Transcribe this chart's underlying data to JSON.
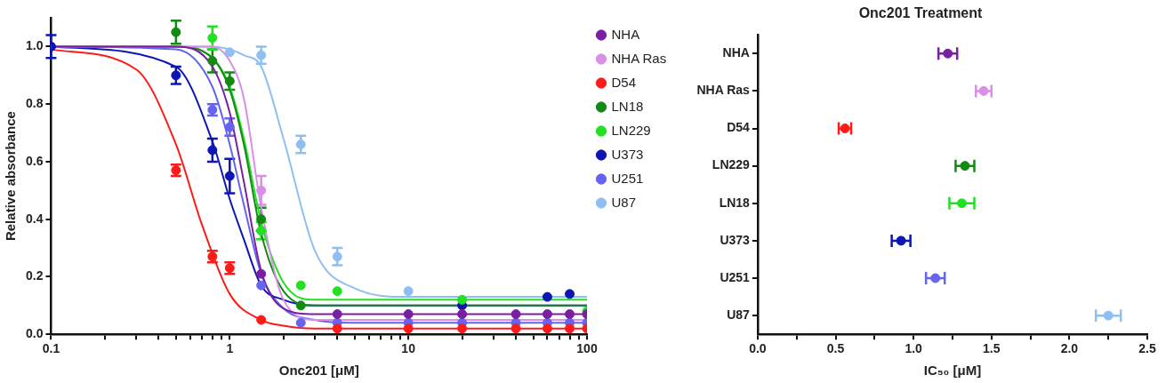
{
  "chart_data": [
    {
      "type": "scatter",
      "xlabel": "Onc201 [μM]",
      "ylabel": "Relative absorbance",
      "log": "x",
      "legend": "right",
      "marker": "circle",
      "xlim": [
        0.1,
        100
      ],
      "xticks": [
        0.1,
        {
          "value": 0.2,
          "label": null
        },
        {
          "value": 0.3,
          "label": null
        },
        {
          "value": 0.4,
          "label": null
        },
        {
          "value": 0.5,
          "label": null
        },
        {
          "value": 0.6,
          "label": null
        },
        {
          "value": 0.7,
          "label": null
        },
        {
          "value": 0.8,
          "label": null
        },
        {
          "value": 0.9,
          "label": null
        },
        1,
        {
          "value": 2,
          "label": null
        },
        {
          "value": 3,
          "label": null
        },
        {
          "value": 4,
          "label": null
        },
        {
          "value": 5,
          "label": null
        },
        {
          "value": 6,
          "label": null
        },
        {
          "value": 7,
          "label": null
        },
        {
          "value": 8,
          "label": null
        },
        {
          "value": 9,
          "label": null
        },
        10,
        {
          "value": 20,
          "label": null
        },
        {
          "value": 30,
          "label": null
        },
        {
          "value": 40,
          "label": null
        },
        {
          "value": 50,
          "label": null
        },
        {
          "value": 60,
          "label": null
        },
        {
          "value": 70,
          "label": null
        },
        {
          "value": 80,
          "label": null
        },
        {
          "value": 90,
          "label": null
        },
        100
      ],
      "ylim": [
        0,
        1.1
      ],
      "yticks": [
        {
          "value": 0,
          "label": "0.0"
        },
        {
          "value": 0.2,
          "label": "0.2"
        },
        {
          "value": 0.4,
          "label": "0.4"
        },
        {
          "value": 0.6,
          "label": "0.6"
        },
        {
          "value": 0.8,
          "label": "0.8"
        },
        {
          "value": 1,
          "label": "1.0"
        }
      ],
      "x": [
        0.1,
        0.5,
        0.8,
        1,
        1.5,
        2.5,
        4,
        10,
        20,
        40,
        60,
        80,
        100
      ],
      "series": [
        {
          "name": "NHA",
          "color": "#7b1fa2",
          "values": [
            null,
            null,
            null,
            null,
            0.21,
            null,
            0.07,
            0.07,
            0.07,
            0.07,
            0.07,
            0.07,
            0.07
          ],
          "errors": [
            null,
            null,
            null,
            null,
            null,
            null,
            null,
            null,
            null,
            null,
            null,
            null,
            null
          ]
        },
        {
          "name": "NHA Ras",
          "color": "#d98ee8",
          "values": [
            null,
            null,
            null,
            null,
            0.5,
            null,
            null,
            null,
            null,
            null,
            null,
            null,
            null
          ],
          "errors": [
            null,
            null,
            null,
            null,
            0.05,
            null,
            null,
            null,
            null,
            null,
            null,
            null,
            null
          ]
        },
        {
          "name": "D54",
          "color": "#ff1a1a",
          "values": [
            null,
            0.57,
            0.27,
            0.23,
            0.05,
            null,
            0.02,
            0.02,
            0.02,
            0.02,
            0.02,
            0.02,
            0.02
          ],
          "errors": [
            null,
            0.02,
            0.02,
            0.02,
            null,
            null,
            null,
            null,
            null,
            null,
            null,
            null,
            null
          ]
        },
        {
          "name": "LN18",
          "color": "#138a13",
          "values": [
            null,
            1.05,
            0.95,
            0.88,
            0.4,
            0.1,
            null,
            null,
            null,
            null,
            null,
            null,
            null
          ],
          "errors": [
            null,
            0.04,
            0.04,
            0.03,
            0.04,
            null,
            null,
            null,
            null,
            null,
            null,
            null,
            null
          ]
        },
        {
          "name": "LN229",
          "color": "#22e022",
          "values": [
            null,
            null,
            1.03,
            null,
            0.36,
            0.17,
            0.15,
            null,
            0.12,
            null,
            null,
            null,
            0.08
          ],
          "errors": [
            null,
            null,
            0.04,
            null,
            0.03,
            null,
            null,
            null,
            null,
            null,
            null,
            null,
            null
          ]
        },
        {
          "name": "U373",
          "color": "#0d16b5",
          "values": [
            1.0,
            0.9,
            0.64,
            0.55,
            null,
            null,
            null,
            null,
            0.1,
            null,
            0.13,
            0.14,
            null
          ],
          "errors": [
            0.04,
            0.03,
            0.04,
            0.06,
            null,
            null,
            null,
            null,
            null,
            null,
            null,
            null,
            null
          ]
        },
        {
          "name": "U251",
          "color": "#6464f0",
          "values": [
            null,
            null,
            0.78,
            0.72,
            0.17,
            0.04,
            0.04,
            0.04,
            0.04,
            0.04,
            0.04,
            0.04,
            0.04
          ],
          "errors": [
            null,
            null,
            0.02,
            0.03,
            null,
            null,
            null,
            null,
            null,
            null,
            null,
            null,
            null
          ]
        },
        {
          "name": "U87",
          "color": "#8fbff2",
          "values": [
            null,
            null,
            null,
            0.98,
            0.97,
            0.66,
            0.27,
            0.15,
            null,
            null,
            null,
            null,
            null
          ],
          "errors": [
            null,
            null,
            null,
            null,
            0.03,
            0.03,
            0.03,
            null,
            null,
            null,
            null,
            null,
            null
          ]
        },
        {
          "type": "line",
          "marker": "none",
          "color": "#7b1fa2",
          "x": [
            0.1,
            0.5,
            0.8,
            1,
            1.2,
            1.5,
            2,
            3,
            5,
            10,
            100
          ],
          "values": [
            1,
            1.0,
            0.93,
            0.77,
            0.53,
            0.22,
            0.09,
            0.07,
            0.07,
            0.07,
            0.07
          ]
        },
        {
          "type": "line",
          "marker": "none",
          "color": "#d98ee8",
          "x": [
            0.1,
            0.5,
            0.8,
            1,
            1.2,
            1.5,
            2,
            3,
            5,
            10,
            100
          ],
          "values": [
            1,
            1,
            1,
            0.95,
            0.82,
            0.44,
            0.12,
            0.05,
            0.05,
            0.05,
            0.05
          ]
        },
        {
          "type": "line",
          "marker": "none",
          "color": "#ff1a1a",
          "x": [
            0.1,
            0.3,
            0.5,
            0.7,
            1,
            1.5,
            2,
            3,
            10,
            100
          ],
          "values": [
            0.99,
            0.92,
            0.66,
            0.38,
            0.14,
            0.05,
            0.03,
            0.02,
            0.02,
            0.02
          ]
        },
        {
          "type": "line",
          "marker": "none",
          "color": "#138a13",
          "x": [
            0.1,
            0.5,
            0.8,
            1,
            1.2,
            1.5,
            2,
            3,
            5,
            10,
            100
          ],
          "values": [
            1,
            1,
            0.96,
            0.85,
            0.66,
            0.35,
            0.15,
            0.1,
            0.1,
            0.1,
            0.1
          ]
        },
        {
          "type": "line",
          "marker": "none",
          "color": "#22e022",
          "x": [
            0.1,
            0.5,
            0.8,
            1,
            1.2,
            1.5,
            2,
            3,
            5,
            10,
            100
          ],
          "values": [
            1,
            1,
            0.96,
            0.86,
            0.68,
            0.39,
            0.18,
            0.12,
            0.12,
            0.12,
            0.12
          ]
        },
        {
          "type": "line",
          "marker": "none",
          "color": "#0d16b5",
          "x": [
            0.1,
            0.5,
            0.8,
            1,
            1.2,
            1.5,
            2,
            3,
            5,
            10,
            100
          ],
          "values": [
            1,
            0.93,
            0.67,
            0.47,
            0.33,
            0.17,
            0.12,
            0.1,
            0.1,
            0.1,
            0.1
          ]
        },
        {
          "type": "line",
          "marker": "none",
          "color": "#6464f0",
          "x": [
            0.1,
            0.5,
            0.8,
            1,
            1.2,
            1.5,
            2,
            3,
            5,
            10,
            100
          ],
          "values": [
            1,
            0.99,
            0.86,
            0.66,
            0.45,
            0.21,
            0.09,
            0.05,
            0.04,
            0.04,
            0.04
          ]
        },
        {
          "type": "line",
          "marker": "none",
          "color": "#8fbff2",
          "x": [
            0.1,
            0.5,
            0.8,
            1,
            1.2,
            1.5,
            2,
            3,
            5,
            10,
            100
          ],
          "values": [
            1,
            1,
            1,
            0.99,
            0.97,
            0.93,
            0.68,
            0.29,
            0.16,
            0.13,
            0.13
          ]
        }
      ]
    },
    {
      "type": "scatter",
      "title": "Onc201 Treatment",
      "xlabel": "IC₅₀ [μM]",
      "orientation": "horizontal",
      "marker": "circle",
      "categories": [
        "NHA",
        "NHA Ras",
        "D54",
        "LN229",
        "LN18",
        "U373",
        "U251",
        "U87"
      ],
      "values": [
        1.22,
        1.45,
        0.56,
        1.33,
        1.31,
        0.92,
        1.14,
        2.25
      ],
      "errors": [
        0.06,
        0.05,
        0.04,
        0.06,
        0.08,
        0.06,
        0.06,
        0.08
      ],
      "colors": [
        "#7b1fa2",
        "#d98ee8",
        "#ff1a1a",
        "#138a13",
        "#22e022",
        "#0d16b5",
        "#6464f0",
        "#8fbff2"
      ],
      "xlim": [
        0,
        2.5
      ],
      "xticks": [
        {
          "value": 0,
          "label": "0.0"
        },
        {
          "value": 0.25,
          "label": null
        },
        {
          "value": 0.5,
          "label": "0.5"
        },
        {
          "value": 0.75,
          "label": null
        },
        {
          "value": 1,
          "label": "1.0"
        },
        {
          "value": 1.25,
          "label": null
        },
        {
          "value": 1.5,
          "label": "1.5"
        },
        {
          "value": 1.75,
          "label": null
        },
        {
          "value": 2,
          "label": "2.0"
        },
        {
          "value": 2.25,
          "label": null
        },
        {
          "value": 2.5,
          "label": "2.5"
        }
      ]
    }
  ]
}
